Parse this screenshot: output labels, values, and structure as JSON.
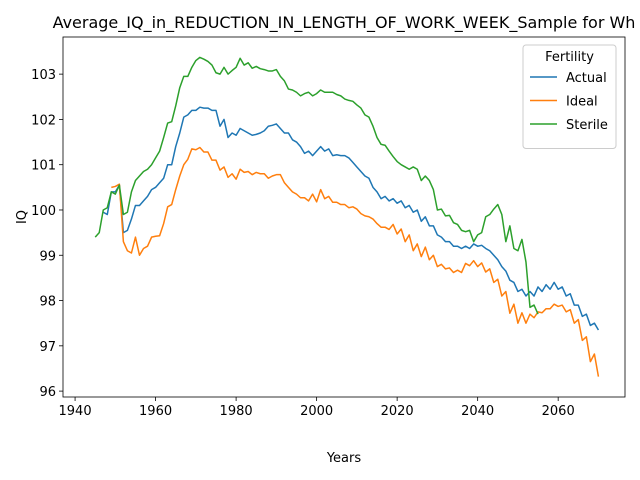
{
  "chart_data": {
    "type": "line",
    "title": "Average_IQ_in_REDUCTION_IN_LENGTH_OF_WORK_WEEK_Sample for Wh",
    "xlabel": "Years",
    "ylabel": "IQ",
    "legend_title": "Fertility",
    "legend_loc": "upper right",
    "xlim": [
      1937,
      2076.6
    ],
    "ylim": [
      95.87,
      103.82
    ],
    "xticks": [
      1940,
      1960,
      1980,
      2000,
      2020,
      2040,
      2060
    ],
    "yticks": [
      96,
      97,
      98,
      99,
      100,
      101,
      102,
      103
    ],
    "x": [
      1945,
      1946,
      1947,
      1948,
      1949,
      1950,
      1951,
      1952,
      1953,
      1954,
      1955,
      1956,
      1957,
      1958,
      1959,
      1960,
      1961,
      1962,
      1963,
      1964,
      1965,
      1966,
      1967,
      1968,
      1969,
      1970,
      1971,
      1972,
      1973,
      1974,
      1975,
      1976,
      1977,
      1978,
      1979,
      1980,
      1981,
      1982,
      1983,
      1984,
      1985,
      1986,
      1987,
      1988,
      1989,
      1990,
      1991,
      1992,
      1993,
      1994,
      1995,
      1996,
      1997,
      1998,
      1999,
      2000,
      2001,
      2002,
      2003,
      2004,
      2005,
      2006,
      2007,
      2008,
      2009,
      2010,
      2011,
      2012,
      2013,
      2014,
      2015,
      2016,
      2017,
      2018,
      2019,
      2020,
      2021,
      2022,
      2023,
      2024,
      2025,
      2026,
      2027,
      2028,
      2029,
      2030,
      2031,
      2032,
      2033,
      2034,
      2035,
      2036,
      2037,
      2038,
      2039,
      2040,
      2041,
      2042,
      2043,
      2044,
      2045,
      2046,
      2047,
      2048,
      2049,
      2050,
      2051,
      2052,
      2053,
      2054,
      2055,
      2056,
      2057,
      2058,
      2059,
      2060,
      2061,
      2062,
      2063,
      2064,
      2065,
      2066,
      2067,
      2068,
      2069,
      2070
    ],
    "series": [
      {
        "name": "Actual",
        "color": "#1f77b4",
        "values": [
          null,
          null,
          99.95,
          99.9,
          100.4,
          100.4,
          100.55,
          99.5,
          99.55,
          99.8,
          100.1,
          100.1,
          100.2,
          100.3,
          100.45,
          100.5,
          100.6,
          100.7,
          101.0,
          101.0,
          101.4,
          101.7,
          102.05,
          102.1,
          102.2,
          102.2,
          102.27,
          102.25,
          102.25,
          102.2,
          102.2,
          101.85,
          102.0,
          101.6,
          101.7,
          101.65,
          101.8,
          101.75,
          101.7,
          101.65,
          101.67,
          101.7,
          101.75,
          101.85,
          101.87,
          101.9,
          101.8,
          101.7,
          101.7,
          101.55,
          101.5,
          101.4,
          101.25,
          101.3,
          101.2,
          101.3,
          101.4,
          101.3,
          101.35,
          101.2,
          101.22,
          101.2,
          101.2,
          101.15,
          101.05,
          100.95,
          100.85,
          100.75,
          100.7,
          100.5,
          100.4,
          100.25,
          100.3,
          100.2,
          100.25,
          100.15,
          100.2,
          100.05,
          100.1,
          99.95,
          100.0,
          99.75,
          99.85,
          99.65,
          99.65,
          99.45,
          99.4,
          99.3,
          99.3,
          99.2,
          99.2,
          99.15,
          99.2,
          99.15,
          99.25,
          99.2,
          99.22,
          99.15,
          99.1,
          99.0,
          98.9,
          98.75,
          98.65,
          98.45,
          98.4,
          98.2,
          98.25,
          98.1,
          98.2,
          98.1,
          98.3,
          98.2,
          98.35,
          98.25,
          98.4,
          98.25,
          98.3,
          98.1,
          98.15,
          97.9,
          97.9,
          97.65,
          97.7,
          97.45,
          97.5,
          97.35
        ]
      },
      {
        "name": "Ideal",
        "color": "#ff7f0e",
        "values": [
          null,
          null,
          null,
          null,
          100.5,
          100.52,
          100.57,
          99.3,
          99.1,
          99.05,
          99.4,
          99.0,
          99.15,
          99.2,
          99.4,
          99.42,
          99.43,
          99.7,
          100.07,
          100.12,
          100.45,
          100.75,
          101.0,
          101.12,
          101.35,
          101.33,
          101.38,
          101.28,
          101.28,
          101.1,
          101.1,
          100.88,
          100.95,
          100.72,
          100.8,
          100.68,
          100.9,
          100.83,
          100.85,
          100.78,
          100.83,
          100.8,
          100.8,
          100.7,
          100.75,
          100.78,
          100.78,
          100.6,
          100.5,
          100.4,
          100.35,
          100.27,
          100.27,
          100.2,
          100.35,
          100.18,
          100.45,
          100.25,
          100.3,
          100.17,
          100.17,
          100.12,
          100.12,
          100.05,
          100.07,
          100.02,
          99.92,
          99.87,
          99.85,
          99.8,
          99.7,
          99.62,
          99.62,
          99.57,
          99.68,
          99.47,
          99.58,
          99.3,
          99.45,
          99.1,
          99.25,
          98.97,
          99.18,
          98.9,
          99.0,
          98.75,
          98.8,
          98.7,
          98.72,
          98.62,
          98.67,
          98.62,
          98.82,
          98.77,
          98.88,
          98.75,
          98.83,
          98.63,
          98.7,
          98.4,
          98.47,
          98.1,
          98.2,
          97.72,
          97.92,
          97.5,
          97.73,
          97.5,
          97.7,
          97.62,
          97.75,
          97.73,
          97.82,
          97.82,
          97.92,
          97.87,
          97.9,
          97.75,
          97.8,
          97.5,
          97.58,
          97.12,
          97.2,
          96.65,
          96.82,
          96.32
        ]
      },
      {
        "name": "Sterile",
        "color": "#2ca02c",
        "values": [
          99.4,
          99.5,
          100.0,
          100.05,
          100.4,
          100.35,
          100.55,
          99.9,
          99.95,
          100.4,
          100.65,
          100.75,
          100.85,
          100.9,
          101.0,
          101.15,
          101.3,
          101.6,
          101.92,
          101.95,
          102.3,
          102.7,
          102.95,
          102.95,
          103.15,
          103.3,
          103.37,
          103.33,
          103.28,
          103.2,
          103.03,
          103.0,
          103.15,
          103.0,
          103.08,
          103.15,
          103.35,
          103.2,
          103.25,
          103.13,
          103.17,
          103.12,
          103.1,
          103.07,
          103.07,
          103.1,
          102.95,
          102.85,
          102.67,
          102.65,
          102.6,
          102.52,
          102.57,
          102.6,
          102.52,
          102.57,
          102.65,
          102.6,
          102.6,
          102.6,
          102.55,
          102.52,
          102.45,
          102.42,
          102.4,
          102.32,
          102.25,
          102.1,
          102.05,
          101.85,
          101.6,
          101.45,
          101.43,
          101.3,
          101.18,
          101.07,
          101.0,
          100.95,
          100.9,
          100.95,
          100.9,
          100.65,
          100.75,
          100.65,
          100.45,
          100.0,
          100.02,
          99.87,
          99.88,
          99.72,
          99.68,
          99.55,
          99.52,
          99.55,
          99.3,
          99.45,
          99.5,
          99.85,
          99.9,
          100.02,
          100.12,
          99.9,
          99.3,
          99.65,
          99.15,
          99.1,
          99.35,
          98.85,
          97.85,
          97.9,
          97.7,
          null,
          null,
          null,
          null,
          null,
          null,
          null,
          null,
          null,
          null,
          null,
          null,
          null,
          null,
          null
        ]
      }
    ]
  }
}
